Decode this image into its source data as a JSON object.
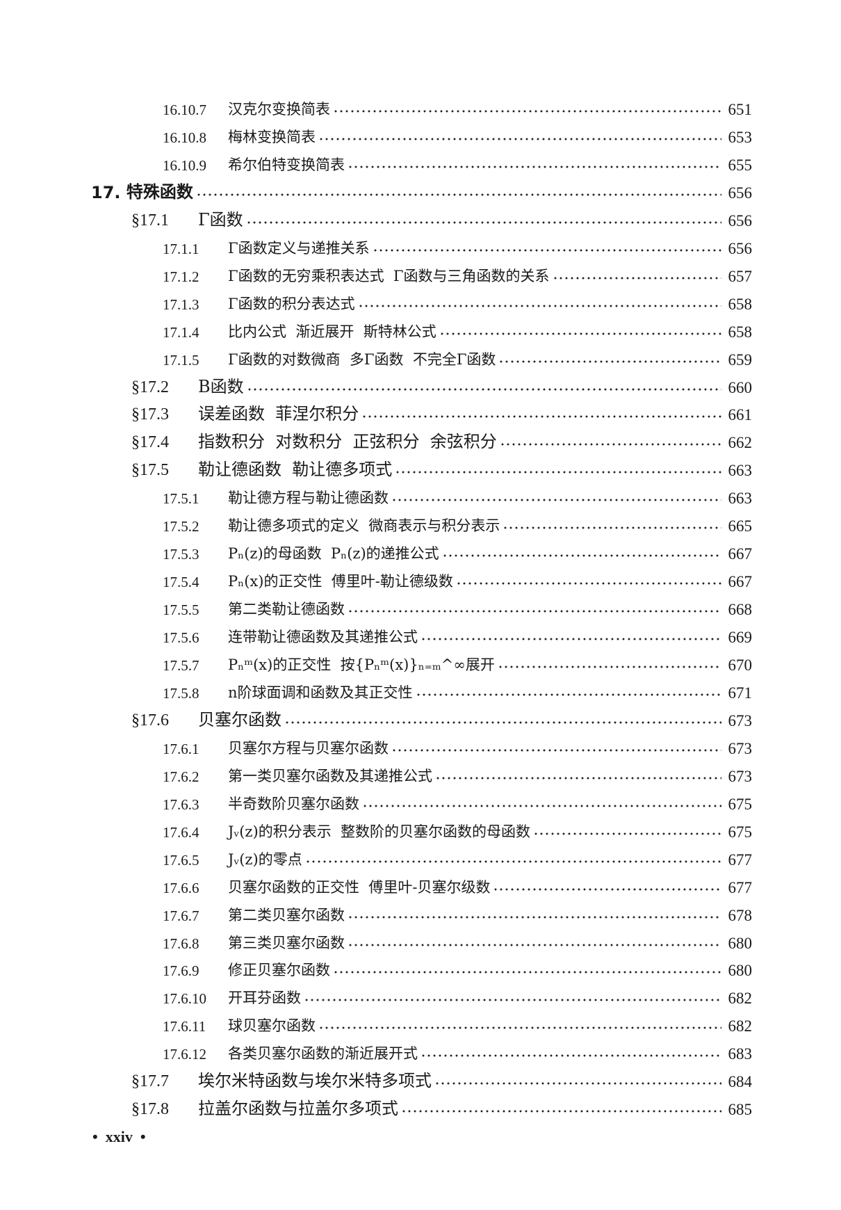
{
  "entries": [
    {
      "level": 3,
      "num": "16.10.7",
      "title": "汉克尔变换简表",
      "page": "651"
    },
    {
      "level": 3,
      "num": "16.10.8",
      "title": "梅林变换简表",
      "page": "653"
    },
    {
      "level": 3,
      "num": "16.10.9",
      "title": "希尔伯特变换简表",
      "page": "655"
    },
    {
      "level": 1,
      "num": "17. ",
      "title": "特殊函数",
      "page": "656"
    },
    {
      "level": 2,
      "num": "§17.1",
      "title": "Γ函数",
      "page": "656"
    },
    {
      "level": 3,
      "num": "17.1.1",
      "title": "Γ函数定义与递推关系",
      "page": "656"
    },
    {
      "level": 3,
      "num": "17.1.2",
      "title": "Γ函数的无穷乘积表达式  Γ函数与三角函数的关系",
      "page": "657"
    },
    {
      "level": 3,
      "num": "17.1.3",
      "title": "Γ函数的积分表达式",
      "page": "658"
    },
    {
      "level": 3,
      "num": "17.1.4",
      "title": "比内公式  渐近展开  斯特林公式",
      "page": "658"
    },
    {
      "level": 3,
      "num": "17.1.5",
      "title": "Γ函数的对数微商  多Γ函数  不完全Γ函数",
      "page": "659"
    },
    {
      "level": 2,
      "num": "§17.2",
      "title": "B函数",
      "page": "660"
    },
    {
      "level": 2,
      "num": "§17.3",
      "title": "误差函数  菲涅尔积分",
      "page": "661"
    },
    {
      "level": 2,
      "num": "§17.4",
      "title": "指数积分  对数积分  正弦积分  余弦积分",
      "page": "662"
    },
    {
      "level": 2,
      "num": "§17.5",
      "title": "勒让德函数  勒让德多项式",
      "page": "663"
    },
    {
      "level": 3,
      "num": "17.5.1",
      "title": "勒让德方程与勒让德函数",
      "page": "663"
    },
    {
      "level": 3,
      "num": "17.5.2",
      "title": "勒让德多项式的定义  微商表示与积分表示",
      "page": "665"
    },
    {
      "level": 3,
      "num": "17.5.3",
      "title": "Pₙ(z)的母函数  Pₙ(z)的递推公式",
      "page": "667"
    },
    {
      "level": 3,
      "num": "17.5.4",
      "title": "Pₙ(x)的正交性  傅里叶-勒让德级数",
      "page": "667"
    },
    {
      "level": 3,
      "num": "17.5.5",
      "title": "第二类勒让德函数",
      "page": "668"
    },
    {
      "level": 3,
      "num": "17.5.6",
      "title": "连带勒让德函数及其递推公式",
      "page": "669"
    },
    {
      "level": 3,
      "num": "17.5.7",
      "title": "Pₙᵐ(x)的正交性  按{Pₙᵐ(x)}ₙ₌ₘ^∞展开",
      "page": "670"
    },
    {
      "level": 3,
      "num": "17.5.8",
      "title": "n阶球面调和函数及其正交性",
      "page": "671"
    },
    {
      "level": 2,
      "num": "§17.6",
      "title": "贝塞尔函数",
      "page": "673"
    },
    {
      "level": 3,
      "num": "17.6.1",
      "title": "贝塞尔方程与贝塞尔函数",
      "page": "673"
    },
    {
      "level": 3,
      "num": "17.6.2",
      "title": "第一类贝塞尔函数及其递推公式",
      "page": "673"
    },
    {
      "level": 3,
      "num": "17.6.3",
      "title": "半奇数阶贝塞尔函数",
      "page": "675"
    },
    {
      "level": 3,
      "num": "17.6.4",
      "title": "Jᵥ(z)的积分表示  整数阶的贝塞尔函数的母函数",
      "page": "675"
    },
    {
      "level": 3,
      "num": "17.6.5",
      "title": "Jᵥ(z)的零点",
      "page": "677"
    },
    {
      "level": 3,
      "num": "17.6.6",
      "title": "贝塞尔函数的正交性  傅里叶-贝塞尔级数",
      "page": "677"
    },
    {
      "level": 3,
      "num": "17.6.7",
      "title": "第二类贝塞尔函数",
      "page": "678"
    },
    {
      "level": 3,
      "num": "17.6.8",
      "title": "第三类贝塞尔函数",
      "page": "680"
    },
    {
      "level": 3,
      "num": "17.6.9",
      "title": "修正贝塞尔函数",
      "page": "680"
    },
    {
      "level": 3,
      "num": "17.6.10",
      "title": "开耳芬函数",
      "page": "682"
    },
    {
      "level": 3,
      "num": "17.6.11",
      "title": "球贝塞尔函数",
      "page": "682"
    },
    {
      "level": 3,
      "num": "17.6.12",
      "title": "各类贝塞尔函数的渐近展开式",
      "page": "683"
    },
    {
      "level": 2,
      "num": "§17.7",
      "title": "埃尔米特函数与埃尔米特多项式",
      "page": "684"
    },
    {
      "level": 2,
      "num": "§17.8",
      "title": "拉盖尔函数与拉盖尔多项式",
      "page": "685"
    }
  ],
  "footer": {
    "page_label": "•  xxiv  •"
  }
}
